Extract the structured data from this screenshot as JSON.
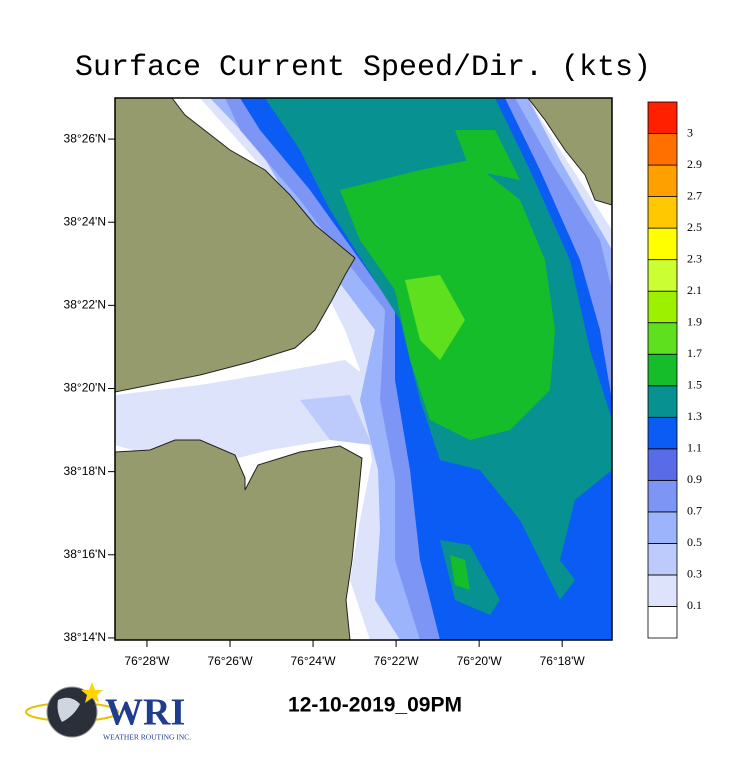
{
  "chart_data": {
    "type": "map",
    "title": "Surface Current Speed/Dir. (kts)",
    "xlim": [
      -76.4795,
      -76.28
    ],
    "ylim": [
      38.2325,
      38.4498
    ],
    "xticks": [
      {
        "value": -76.46667,
        "label": "76°28'W"
      },
      {
        "value": -76.43333,
        "label": "76°26'W"
      },
      {
        "value": -76.4,
        "label": "76°24'W"
      },
      {
        "value": -76.36667,
        "label": "76°22'W"
      },
      {
        "value": -76.33333,
        "label": "76°20'W"
      },
      {
        "value": -76.3,
        "label": "76°18'W"
      }
    ],
    "yticks": [
      {
        "value": 38.23333,
        "label": "38°14'N"
      },
      {
        "value": 38.26667,
        "label": "38°16'N"
      },
      {
        "value": 38.3,
        "label": "38°18'N"
      },
      {
        "value": 38.33333,
        "label": "38°20'N"
      },
      {
        "value": 38.36667,
        "label": "38°22'N"
      },
      {
        "value": 38.4,
        "label": "38°24'N"
      },
      {
        "value": 38.43333,
        "label": "38°26'N"
      }
    ],
    "colorbar": {
      "levels": [
        0.1,
        0.3,
        0.5,
        0.7,
        0.9,
        1.1,
        1.3,
        1.5,
        1.7,
        1.9,
        2.1,
        2.3,
        2.5,
        2.7,
        2.9,
        3
      ],
      "colors": [
        "#ffffff",
        "#dce3fb",
        "#bccbfb",
        "#9cb4fb",
        "#7d96f5",
        "#5a6be8",
        "#0a5cf5",
        "#079191",
        "#16bd2a",
        "#5fe01e",
        "#9cf000",
        "#ccff33",
        "#ffff00",
        "#ffc800",
        "#ffa000",
        "#ff7000",
        "#ff2000"
      ]
    }
  },
  "timestamp": "12-10-2019_09PM",
  "logo": {
    "name": "WRI",
    "tagline": "WEATHER ROUTING INC."
  }
}
